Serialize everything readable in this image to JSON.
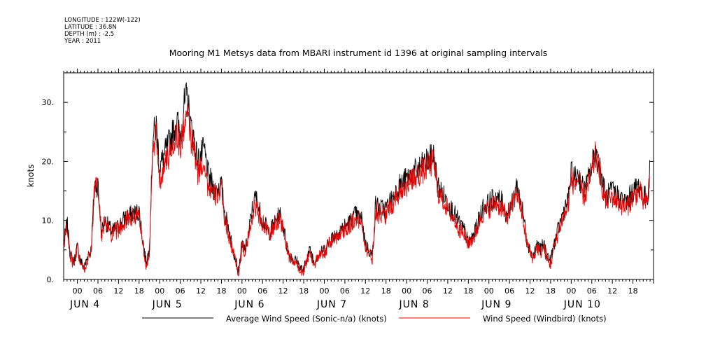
{
  "header": {
    "longitude": "LONGITUDE : 122W(-122)",
    "latitude": "LATITUDE : 36.8N",
    "depth": "DEPTH (m) : -2.5",
    "year": "YEAR : 2011"
  },
  "chart_data": {
    "type": "line",
    "title": "Mooring M1 Metsys data from MBARI instrument id 1396 at original sampling intervals",
    "xlabel": "",
    "ylabel": "knots",
    "xlim_hours_label": [
      "JUN 3 20:00",
      "JUN 10 20:00"
    ],
    "ylim": [
      0,
      35
    ],
    "y_ticks": [
      0,
      10,
      20,
      30
    ],
    "y_tick_labels": [
      "0.",
      "10.",
      "20.",
      "30."
    ],
    "hour_tick_labels": [
      "00",
      "06",
      "12",
      "18",
      "00",
      "06",
      "12",
      "18",
      "00",
      "06",
      "12",
      "18",
      "00",
      "06",
      "12",
      "18",
      "00",
      "06",
      "12",
      "18",
      "00",
      "06",
      "12",
      "18",
      "00",
      "06",
      "12",
      "18"
    ],
    "day_labels": [
      "JUN  4",
      "JUN  5",
      "JUN  6",
      "JUN  7",
      "JUN  8",
      "JUN  9",
      "JUN 10"
    ],
    "legend_placement": "bottom",
    "grid": false,
    "colors": {
      "sonic": "#000000",
      "windbird": "#ee0000"
    },
    "series": [
      {
        "name": "Average Wind Speed (Sonic-n/a) (knots)",
        "key": "sonic",
        "keypoints": [
          [
            0,
            6
          ],
          [
            1,
            9.5
          ],
          [
            2,
            4
          ],
          [
            3,
            3
          ],
          [
            4,
            5.5
          ],
          [
            5,
            3
          ],
          [
            6,
            2
          ],
          [
            7,
            4
          ],
          [
            8,
            5
          ],
          [
            9,
            16
          ],
          [
            10,
            16
          ],
          [
            11,
            8
          ],
          [
            12,
            10
          ],
          [
            14,
            8
          ],
          [
            16,
            9
          ],
          [
            18,
            10.5
          ],
          [
            20,
            11
          ],
          [
            22,
            11.5
          ],
          [
            23,
            7
          ],
          [
            24,
            3
          ],
          [
            25,
            5
          ],
          [
            26,
            24
          ],
          [
            27,
            26
          ],
          [
            28,
            19
          ],
          [
            30,
            22
          ],
          [
            32,
            25
          ],
          [
            33,
            27
          ],
          [
            34,
            24
          ],
          [
            35,
            29
          ],
          [
            36,
            31
          ],
          [
            37,
            26
          ],
          [
            38,
            24
          ],
          [
            39,
            20
          ],
          [
            40,
            21
          ],
          [
            41,
            22
          ],
          [
            42,
            18
          ],
          [
            44,
            15
          ],
          [
            46,
            16
          ],
          [
            47,
            11
          ],
          [
            48,
            9
          ],
          [
            49,
            6
          ],
          [
            50,
            4
          ],
          [
            51,
            1
          ],
          [
            52,
            6
          ],
          [
            53,
            5
          ],
          [
            54,
            8
          ],
          [
            55,
            12
          ],
          [
            56,
            14
          ],
          [
            57,
            12
          ],
          [
            58,
            10
          ],
          [
            59,
            9
          ],
          [
            60,
            8
          ],
          [
            62,
            10
          ],
          [
            63,
            11
          ],
          [
            64,
            9
          ],
          [
            65,
            6
          ],
          [
            66,
            4
          ],
          [
            68,
            3
          ],
          [
            69,
            2
          ],
          [
            70,
            1.5
          ],
          [
            71,
            4
          ],
          [
            72,
            5
          ],
          [
            73,
            3
          ],
          [
            74,
            4
          ],
          [
            76,
            5
          ],
          [
            78,
            7
          ],
          [
            80,
            8
          ],
          [
            82,
            9
          ],
          [
            84,
            10
          ],
          [
            85,
            11
          ],
          [
            87,
            10
          ],
          [
            88,
            6
          ],
          [
            89,
            5
          ],
          [
            90,
            4
          ],
          [
            91,
            13
          ],
          [
            92,
            12
          ],
          [
            94,
            12
          ],
          [
            96,
            14
          ],
          [
            98,
            16
          ],
          [
            100,
            17
          ],
          [
            102,
            18
          ],
          [
            104,
            19
          ],
          [
            106,
            20
          ],
          [
            108,
            21
          ],
          [
            109,
            16
          ],
          [
            110,
            15
          ],
          [
            112,
            13
          ],
          [
            114,
            11
          ],
          [
            116,
            9
          ],
          [
            117,
            8
          ],
          [
            118,
            6
          ],
          [
            120,
            8
          ],
          [
            121,
            10
          ],
          [
            122,
            12
          ],
          [
            124,
            13
          ],
          [
            126,
            14
          ],
          [
            128,
            13
          ],
          [
            129,
            11
          ],
          [
            130,
            12
          ],
          [
            131,
            13
          ],
          [
            132,
            16
          ],
          [
            133,
            14
          ],
          [
            134,
            11
          ],
          [
            135,
            7
          ],
          [
            136,
            5
          ],
          [
            137,
            4
          ],
          [
            138,
            6
          ],
          [
            139,
            5
          ],
          [
            140,
            6
          ],
          [
            141,
            4
          ],
          [
            142,
            3
          ],
          [
            143,
            6
          ],
          [
            144,
            8
          ],
          [
            145,
            10
          ],
          [
            146,
            12
          ],
          [
            147,
            13
          ],
          [
            148,
            18
          ],
          [
            149,
            17
          ],
          [
            150,
            18
          ],
          [
            151,
            16
          ],
          [
            152,
            15
          ],
          [
            153,
            17
          ],
          [
            154,
            19
          ],
          [
            155,
            22
          ],
          [
            156,
            20
          ],
          [
            157,
            17
          ],
          [
            158,
            14
          ],
          [
            160,
            15
          ],
          [
            162,
            14
          ],
          [
            164,
            13
          ],
          [
            166,
            15
          ],
          [
            168,
            16
          ],
          [
            169,
            14
          ],
          [
            170,
            14
          ],
          [
            170.5,
            15
          ],
          [
            171,
            19
          ]
        ]
      },
      {
        "name": "Wind Speed (Windbird) (knots)",
        "key": "windbird",
        "keypoints": [
          [
            0,
            5.5
          ],
          [
            1,
            9
          ],
          [
            2,
            3.5
          ],
          [
            3,
            2.5
          ],
          [
            4,
            5
          ],
          [
            5,
            2.5
          ],
          [
            6,
            1.5
          ],
          [
            7,
            3.5
          ],
          [
            8,
            4.5
          ],
          [
            9,
            15.5
          ],
          [
            10,
            15.5
          ],
          [
            11,
            7.5
          ],
          [
            12,
            9.5
          ],
          [
            14,
            7.5
          ],
          [
            16,
            8.5
          ],
          [
            18,
            10
          ],
          [
            20,
            10.5
          ],
          [
            22,
            11
          ],
          [
            23,
            6.5
          ],
          [
            24,
            2.5
          ],
          [
            25,
            4.5
          ],
          [
            26,
            22
          ],
          [
            27,
            24
          ],
          [
            28,
            17
          ],
          [
            30,
            20
          ],
          [
            32,
            23
          ],
          [
            33,
            25
          ],
          [
            34,
            22
          ],
          [
            35,
            26
          ],
          [
            36,
            28
          ],
          [
            37,
            24
          ],
          [
            38,
            22
          ],
          [
            39,
            18
          ],
          [
            40,
            19
          ],
          [
            41,
            20
          ],
          [
            42,
            16
          ],
          [
            44,
            14
          ],
          [
            46,
            15
          ],
          [
            47,
            10
          ],
          [
            48,
            8
          ],
          [
            49,
            5.5
          ],
          [
            50,
            3.5
          ],
          [
            51,
            1
          ],
          [
            52,
            5.5
          ],
          [
            53,
            4.5
          ],
          [
            54,
            7.5
          ],
          [
            55,
            11
          ],
          [
            56,
            12.5
          ],
          [
            57,
            11
          ],
          [
            58,
            9.5
          ],
          [
            59,
            8.5
          ],
          [
            60,
            7.5
          ],
          [
            62,
            9.5
          ],
          [
            63,
            10.5
          ],
          [
            64,
            8.5
          ],
          [
            65,
            5.5
          ],
          [
            66,
            3.5
          ],
          [
            68,
            2.5
          ],
          [
            69,
            1.5
          ],
          [
            70,
            1.5
          ],
          [
            71,
            3.5
          ],
          [
            72,
            4.5
          ],
          [
            73,
            2.5
          ],
          [
            74,
            3.5
          ],
          [
            76,
            4.5
          ],
          [
            78,
            6.5
          ],
          [
            80,
            7.5
          ],
          [
            82,
            8.5
          ],
          [
            84,
            9.5
          ],
          [
            85,
            10.5
          ],
          [
            87,
            9.5
          ],
          [
            88,
            5.5
          ],
          [
            89,
            4.5
          ],
          [
            90,
            3.5
          ],
          [
            91,
            12
          ],
          [
            92,
            11
          ],
          [
            94,
            11
          ],
          [
            96,
            13
          ],
          [
            98,
            15
          ],
          [
            100,
            16
          ],
          [
            102,
            17
          ],
          [
            104,
            18
          ],
          [
            106,
            19
          ],
          [
            108,
            20
          ],
          [
            109,
            15
          ],
          [
            110,
            14
          ],
          [
            112,
            12
          ],
          [
            114,
            10
          ],
          [
            116,
            8
          ],
          [
            117,
            7.5
          ],
          [
            118,
            6
          ],
          [
            120,
            7.5
          ],
          [
            121,
            9.5
          ],
          [
            122,
            11
          ],
          [
            124,
            12
          ],
          [
            126,
            13
          ],
          [
            128,
            12
          ],
          [
            129,
            10.5
          ],
          [
            130,
            11.5
          ],
          [
            131,
            12.5
          ],
          [
            132,
            15
          ],
          [
            133,
            13
          ],
          [
            134,
            10
          ],
          [
            135,
            6.5
          ],
          [
            136,
            4.5
          ],
          [
            137,
            3.5
          ],
          [
            138,
            5.5
          ],
          [
            139,
            4.5
          ],
          [
            140,
            5.5
          ],
          [
            141,
            3.5
          ],
          [
            142,
            2.5
          ],
          [
            143,
            5.5
          ],
          [
            144,
            7.5
          ],
          [
            145,
            9.5
          ],
          [
            146,
            11
          ],
          [
            147,
            12
          ],
          [
            148,
            17
          ],
          [
            149,
            16
          ],
          [
            150,
            17
          ],
          [
            151,
            15
          ],
          [
            152,
            14
          ],
          [
            153,
            16
          ],
          [
            154,
            18
          ],
          [
            155,
            21
          ],
          [
            156,
            19
          ],
          [
            157,
            16
          ],
          [
            158,
            13
          ],
          [
            160,
            14
          ],
          [
            162,
            13
          ],
          [
            164,
            12
          ],
          [
            166,
            14
          ],
          [
            168,
            15
          ],
          [
            169,
            13
          ],
          [
            170,
            13
          ],
          [
            170.5,
            14
          ],
          [
            171,
            18
          ]
        ]
      }
    ]
  }
}
